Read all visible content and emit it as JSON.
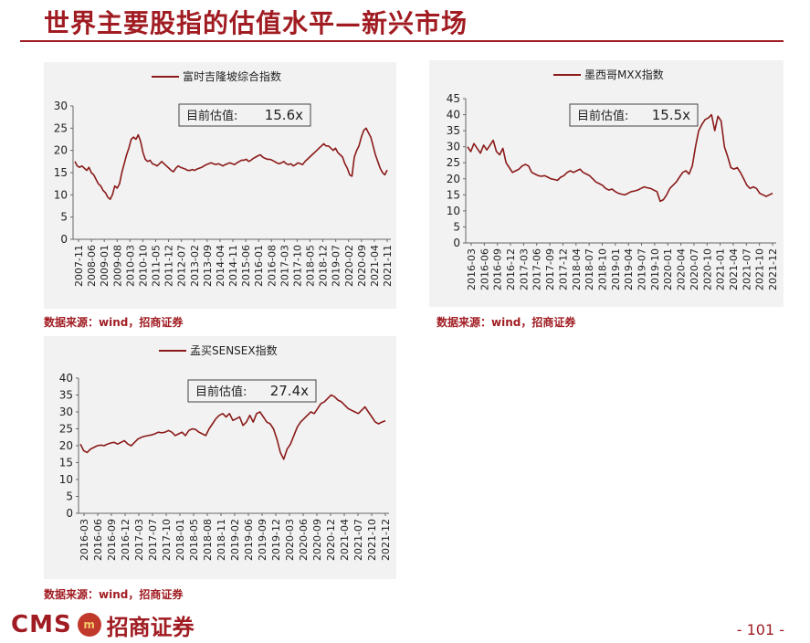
{
  "page": {
    "title": "世界主要股指的估值水平—新兴市场",
    "page_number": "- 101 -",
    "logo": {
      "latin": "CMS",
      "badge": "m",
      "chinese": "招商证券"
    },
    "accent_color": "#a01c22",
    "line_color": "#8b1a1a"
  },
  "chart_data": [
    {
      "type": "line",
      "title": "富时吉隆坡综合指数",
      "series": [
        {
          "name": "富时吉隆坡综合指数",
          "values": [
            17.5,
            16.5,
            16.2,
            16.5,
            16.0,
            15.5,
            16.2,
            15.0,
            14.5,
            13.5,
            12.5,
            12.0,
            11.0,
            10.5,
            9.5,
            9.0,
            10.0,
            12.0,
            11.5,
            12.5,
            15.0,
            17.0,
            19.0,
            20.5,
            22.5,
            23.0,
            22.5,
            23.5,
            22.0,
            19.5,
            18.0,
            17.5,
            17.8,
            17.0,
            16.8,
            16.5,
            17.0,
            17.5,
            17.0,
            16.5,
            16.0,
            15.5,
            15.2,
            16.0,
            16.5,
            16.2,
            16.0,
            15.8,
            15.5,
            15.5,
            15.7,
            15.5,
            15.8,
            16.0,
            16.2,
            16.5,
            16.8,
            17.0,
            17.2,
            17.0,
            16.8,
            17.0,
            16.8,
            16.5,
            16.8,
            17.0,
            17.2,
            17.0,
            16.8,
            17.2,
            17.5,
            17.8,
            17.8,
            18.0,
            17.5,
            17.8,
            18.2,
            18.5,
            18.8,
            19.0,
            18.5,
            18.2,
            18.0,
            18.0,
            17.8,
            17.5,
            17.2,
            17.0,
            17.2,
            17.5,
            17.0,
            16.8,
            17.0,
            16.5,
            16.8,
            17.2,
            17.0,
            16.8,
            17.5,
            18.0,
            18.5,
            19.0,
            19.5,
            20.0,
            20.5,
            21.0,
            21.5,
            21.0,
            21.0,
            20.5,
            20.0,
            20.5,
            19.5,
            19.0,
            18.5,
            17.0,
            16.0,
            14.5,
            14.2,
            18.5,
            20.0,
            21.0,
            23.0,
            24.5,
            25.0,
            24.0,
            23.0,
            21.0,
            19.0,
            17.5,
            16.0,
            15.0,
            14.5,
            15.6
          ]
        }
      ],
      "x_tick_labels": [
        "2007-11",
        "2008-06",
        "2009-01",
        "2009-08",
        "2010-03",
        "2010-10",
        "2011-05",
        "2011-12",
        "2012-07",
        "2013-02",
        "2013-09",
        "2014-04",
        "2014-11",
        "2015-06",
        "2016-01",
        "2016-08",
        "2017-03",
        "2017-10",
        "2018-05",
        "2018-12",
        "2019-07",
        "2020-02",
        "2020-09",
        "2021-04",
        "2021-11"
      ],
      "x_tick_display": [
        "2007-11",
        "2008-06",
        "2009-01",
        "2009-08",
        "2010-03",
        "2010-10",
        "2011-05",
        "2011-12",
        "2012-07",
        "2013-02",
        "2013-09",
        "2014-04",
        "2014-11",
        "2015-06",
        "2016-01",
        "2016-08",
        "2017-03",
        "2017-10",
        "2018-05",
        "2018-12",
        "2019-07",
        "2020-02",
        "2020-09",
        "2021-04",
        "2021-11"
      ],
      "ylim": [
        0,
        30
      ],
      "yticks": [
        0,
        5,
        10,
        15,
        20,
        25,
        30
      ],
      "annotation": {
        "label": "目前估值:",
        "value": "15.6x"
      },
      "source": "数据来源：wind，招商证券",
      "grid": false
    },
    {
      "type": "line",
      "title": "墨西哥MXX指数",
      "series": [
        {
          "name": "墨西哥MXX指数",
          "values": [
            30.0,
            28.5,
            31.0,
            29.5,
            28.0,
            30.5,
            29.0,
            30.5,
            32.0,
            28.5,
            27.5,
            29.5,
            25.0,
            23.5,
            22.0,
            22.5,
            23.0,
            24.0,
            24.5,
            24.0,
            22.0,
            21.5,
            21.0,
            20.8,
            21.0,
            20.5,
            20.0,
            19.8,
            19.5,
            20.5,
            21.0,
            22.0,
            22.5,
            22.0,
            22.5,
            23.0,
            22.0,
            21.5,
            21.0,
            20.0,
            19.0,
            18.5,
            18.0,
            17.0,
            16.5,
            16.8,
            16.0,
            15.5,
            15.2,
            15.0,
            15.5,
            16.0,
            16.2,
            16.5,
            17.0,
            17.5,
            17.2,
            17.0,
            16.5,
            16.0,
            13.0,
            13.5,
            15.0,
            17.0,
            18.0,
            19.0,
            20.5,
            22.0,
            22.5,
            21.5,
            24.0,
            30.0,
            35.0,
            37.0,
            38.5,
            39.0,
            40.0,
            35.0,
            39.5,
            38.0,
            30.0,
            27.0,
            23.5,
            23.0,
            23.5,
            22.0,
            20.0,
            18.0,
            17.0,
            17.5,
            17.0,
            15.5,
            15.0,
            14.5,
            15.0,
            15.5
          ]
        }
      ],
      "x_tick_labels": [
        "2016-03",
        "2016-06",
        "2016-09",
        "2016-12",
        "2017-03",
        "2017-06",
        "2017-09",
        "2017-12",
        "2018-04",
        "2018-07",
        "2018-10",
        "2019-01",
        "2019-04",
        "2019-07",
        "2019-10",
        "2020-01",
        "2020-04",
        "2020-07",
        "2020-10",
        "2021-01",
        "2021-04",
        "2021-07",
        "2021-10",
        "2021-12"
      ],
      "ylim": [
        0,
        45
      ],
      "yticks": [
        0,
        5,
        10,
        15,
        20,
        25,
        30,
        35,
        40,
        45
      ],
      "annotation": {
        "label": "目前估值:",
        "value": "15.5x"
      },
      "source": "数据来源：wind，招商证券",
      "grid": false
    },
    {
      "type": "line",
      "title": "孟买SENSEX指数",
      "series": [
        {
          "name": "孟买SENSEX指数",
          "values": [
            20.5,
            18.5,
            18.0,
            19.0,
            19.5,
            20.0,
            20.2,
            20.0,
            20.5,
            20.8,
            21.0,
            20.5,
            21.0,
            21.5,
            20.5,
            20.0,
            21.0,
            22.0,
            22.5,
            22.8,
            23.0,
            23.2,
            23.5,
            24.0,
            23.8,
            24.0,
            24.5,
            24.0,
            23.0,
            23.5,
            24.0,
            23.0,
            24.5,
            25.0,
            24.8,
            24.0,
            23.5,
            23.0,
            25.0,
            26.5,
            28.0,
            29.0,
            29.5,
            28.5,
            29.5,
            27.5,
            28.0,
            28.5,
            26.0,
            27.0,
            29.0,
            27.0,
            29.5,
            30.0,
            28.5,
            27.0,
            26.5,
            25.0,
            22.0,
            18.0,
            16.0,
            19.0,
            20.5,
            23.0,
            25.5,
            27.0,
            28.0,
            29.0,
            30.0,
            29.5,
            31.0,
            32.5,
            33.0,
            34.0,
            35.0,
            34.5,
            33.5,
            33.0,
            32.0,
            31.0,
            30.5,
            30.0,
            29.5,
            30.5,
            31.5,
            30.0,
            28.5,
            27.0,
            26.5,
            27.0,
            27.4
          ]
        }
      ],
      "x_tick_labels": [
        "2016-03",
        "2016-06",
        "2016-09",
        "2016-12",
        "2017-03",
        "2017-07",
        "2017-10",
        "2018-01",
        "2018-05",
        "2018-08",
        "2018-11",
        "2019-02",
        "2019-06",
        "2019-09",
        "2019-12",
        "2020-03",
        "2020-06",
        "2020-09",
        "2020-12",
        "2021-04",
        "2021-07",
        "2021-10",
        "2021-12"
      ],
      "ylim": [
        0,
        40
      ],
      "yticks": [
        0,
        5,
        10,
        15,
        20,
        25,
        30,
        35,
        40
      ],
      "annotation": {
        "label": "目前估值:",
        "value": "27.4x"
      },
      "source": "数据来源：wind，招商证券",
      "grid": false
    }
  ]
}
